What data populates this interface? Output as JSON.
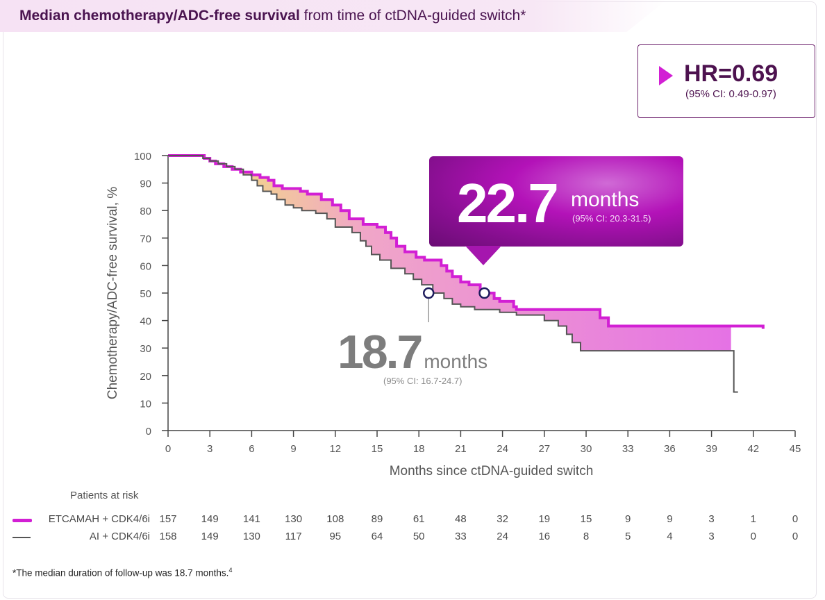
{
  "header": {
    "title_bold": "Median chemotherapy/ADC-free survival",
    "title_rest": "from time of ctDNA-guided switch*"
  },
  "hr_box": {
    "value": "HR=0.69",
    "ci": "(95% CI: 0.49-0.97)"
  },
  "callouts": {
    "etcamah": {
      "value": "22.7",
      "unit": "months",
      "ci": "(95% CI: 20.3-31.5)"
    },
    "ai": {
      "value": "18.7",
      "unit": "months",
      "ci": "(95% CI: 16.7-24.7)"
    }
  },
  "risk_table": {
    "title": "Patients at risk",
    "rows": [
      {
        "label": "ETCAMAH + CDK4/6i",
        "values": [
          157,
          149,
          141,
          130,
          108,
          89,
          61,
          48,
          32,
          19,
          15,
          9,
          9,
          3,
          1,
          0
        ]
      },
      {
        "label": "AI + CDK4/6i",
        "values": [
          158,
          149,
          130,
          117,
          95,
          64,
          50,
          33,
          24,
          16,
          8,
          5,
          4,
          3,
          0,
          0
        ]
      }
    ]
  },
  "footnote": {
    "text": "*The median duration of follow-up was 18.7 months.",
    "ref": "4"
  },
  "chart_data": {
    "type": "line",
    "subtype": "kaplan-meier-step",
    "xlabel": "Months since ctDNA-guided switch",
    "ylabel": "Chemotherapy/ADC-free survival, %",
    "xlim": [
      0,
      45
    ],
    "ylim": [
      0,
      100
    ],
    "xticks": [
      0,
      3,
      6,
      9,
      12,
      15,
      18,
      21,
      24,
      27,
      30,
      33,
      36,
      39,
      42,
      45
    ],
    "yticks": [
      0,
      10,
      20,
      30,
      40,
      50,
      60,
      70,
      80,
      90,
      100
    ],
    "grid": false,
    "colors": {
      "etcamah": "#d21fd4",
      "ai": "#555555",
      "fill_start": "#f5ee6a",
      "fill_mid": "#f0a6c8",
      "fill_end": "#e572e5"
    },
    "series": [
      {
        "name": "ETCAMAH + CDK4/6i",
        "key": "etcamah",
        "x": [
          0,
          2.2,
          2.6,
          3.0,
          3.4,
          4.0,
          4.6,
          5.2,
          6.0,
          6.6,
          7.2,
          7.6,
          8.2,
          9.5,
          10.0,
          11.0,
          11.8,
          12.4,
          13.0,
          14.0,
          15.0,
          15.6,
          16.0,
          16.4,
          17.0,
          17.8,
          18.4,
          19.6,
          20.0,
          20.4,
          21.0,
          21.6,
          22.4,
          22.8,
          23.4,
          23.8,
          24.8,
          25.0,
          30.6,
          31.0,
          31.6,
          42.7
        ],
        "y": [
          100,
          100,
          99,
          98,
          97,
          96,
          95,
          94,
          93,
          92,
          91,
          89,
          88,
          87,
          86,
          84,
          82,
          80,
          77,
          75,
          74,
          72,
          70,
          67,
          65,
          63,
          62,
          60,
          58,
          56,
          54,
          53,
          51,
          50,
          48,
          47,
          45,
          44,
          44,
          41,
          38,
          37
        ]
      },
      {
        "name": "AI + CDK4/6i",
        "key": "ai",
        "x": [
          0,
          2.0,
          2.5,
          3.0,
          3.6,
          4.2,
          4.8,
          5.4,
          6.0,
          6.4,
          6.8,
          7.4,
          7.8,
          8.4,
          9.0,
          9.6,
          10.6,
          11.4,
          12.0,
          13.2,
          13.8,
          14.2,
          14.6,
          15.2,
          16.0,
          17.0,
          17.6,
          18.2,
          19.0,
          19.8,
          20.4,
          21.0,
          22.0,
          23.8,
          25.0,
          27.0,
          28.0,
          28.6,
          29.0,
          29.6,
          40.4,
          40.6
        ],
        "y": [
          100,
          100,
          99,
          98,
          97,
          96,
          95,
          93,
          91,
          89,
          87,
          86,
          84,
          82,
          81,
          80,
          79,
          77,
          74,
          72,
          69,
          67,
          64,
          62,
          59,
          57,
          55,
          53,
          50,
          48,
          46,
          45,
          44,
          43,
          42,
          40,
          38,
          35,
          32,
          29,
          29,
          14
        ]
      }
    ],
    "medians": [
      {
        "series": "ETCAMAH + CDK4/6i",
        "x": 22.7,
        "y": 50
      },
      {
        "series": "AI + CDK4/6i",
        "x": 18.7,
        "y": 50
      }
    ]
  }
}
